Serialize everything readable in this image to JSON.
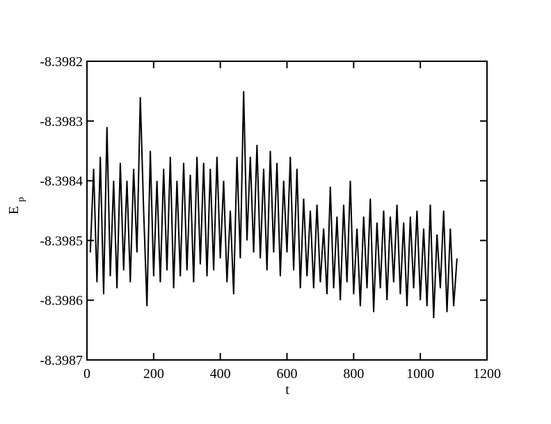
{
  "chart_data": {
    "type": "line",
    "xlabel": "t",
    "ylabel": "E",
    "ylabel_subscript": "p",
    "xlim": [
      0,
      1200
    ],
    "xticks": [
      0,
      200,
      400,
      600,
      800,
      1000,
      1200
    ],
    "ylim": [
      -8.3987,
      -8.3982
    ],
    "yticks": [
      -8.3987,
      -8.3986,
      -8.3985,
      -8.3984,
      -8.3983,
      -8.3982
    ],
    "x": [
      10,
      20,
      30,
      40,
      50,
      60,
      70,
      80,
      90,
      100,
      110,
      120,
      130,
      140,
      150,
      160,
      170,
      180,
      190,
      200,
      210,
      220,
      230,
      240,
      250,
      260,
      270,
      280,
      290,
      300,
      310,
      320,
      330,
      340,
      350,
      360,
      370,
      380,
      390,
      400,
      410,
      420,
      430,
      440,
      450,
      460,
      470,
      480,
      490,
      500,
      510,
      520,
      530,
      540,
      550,
      560,
      570,
      580,
      590,
      600,
      610,
      620,
      630,
      640,
      650,
      660,
      670,
      680,
      690,
      700,
      710,
      720,
      730,
      740,
      750,
      760,
      770,
      780,
      790,
      800,
      810,
      820,
      830,
      840,
      850,
      860,
      870,
      880,
      890,
      900,
      910,
      920,
      930,
      940,
      950,
      960,
      970,
      980,
      990,
      1000,
      1010,
      1020,
      1030,
      1040,
      1050,
      1060,
      1070,
      1080,
      1090,
      1100,
      1110
    ],
    "series": [
      {
        "color": "#000000",
        "values": [
          -8.39852,
          -8.39838,
          -8.39857,
          -8.39836,
          -8.39859,
          -8.39831,
          -8.39856,
          -8.3984,
          -8.39858,
          -8.39837,
          -8.39855,
          -8.3984,
          -8.39857,
          -8.39838,
          -8.39852,
          -8.39826,
          -8.39845,
          -8.39861,
          -8.39835,
          -8.39856,
          -8.3984,
          -8.39857,
          -8.39838,
          -8.39855,
          -8.39836,
          -8.39858,
          -8.3984,
          -8.39856,
          -8.39837,
          -8.39855,
          -8.39839,
          -8.39857,
          -8.39836,
          -8.39854,
          -8.39837,
          -8.39856,
          -8.39838,
          -8.39855,
          -8.39836,
          -8.39853,
          -8.3984,
          -8.39857,
          -8.39845,
          -8.39859,
          -8.39836,
          -8.39853,
          -8.39825,
          -8.3985,
          -8.39836,
          -8.39852,
          -8.39834,
          -8.39853,
          -8.39838,
          -8.39855,
          -8.39835,
          -8.39852,
          -8.39837,
          -8.39856,
          -8.3984,
          -8.39852,
          -8.39836,
          -8.39855,
          -8.39838,
          -8.39858,
          -8.39843,
          -8.39856,
          -8.39845,
          -8.39858,
          -8.39844,
          -8.39857,
          -8.39848,
          -8.39859,
          -8.39841,
          -8.39858,
          -8.39846,
          -8.3986,
          -8.39844,
          -8.39857,
          -8.3984,
          -8.39859,
          -8.39848,
          -8.39861,
          -8.39846,
          -8.39858,
          -8.39843,
          -8.39862,
          -8.39847,
          -8.39858,
          -8.39845,
          -8.3986,
          -8.39846,
          -8.39857,
          -8.39844,
          -8.39859,
          -8.39847,
          -8.39861,
          -8.39846,
          -8.39858,
          -8.39845,
          -8.3986,
          -8.39848,
          -8.39861,
          -8.39844,
          -8.39863,
          -8.39849,
          -8.39858,
          -8.39845,
          -8.39862,
          -8.39848,
          -8.39861,
          -8.39853
        ]
      }
    ]
  }
}
